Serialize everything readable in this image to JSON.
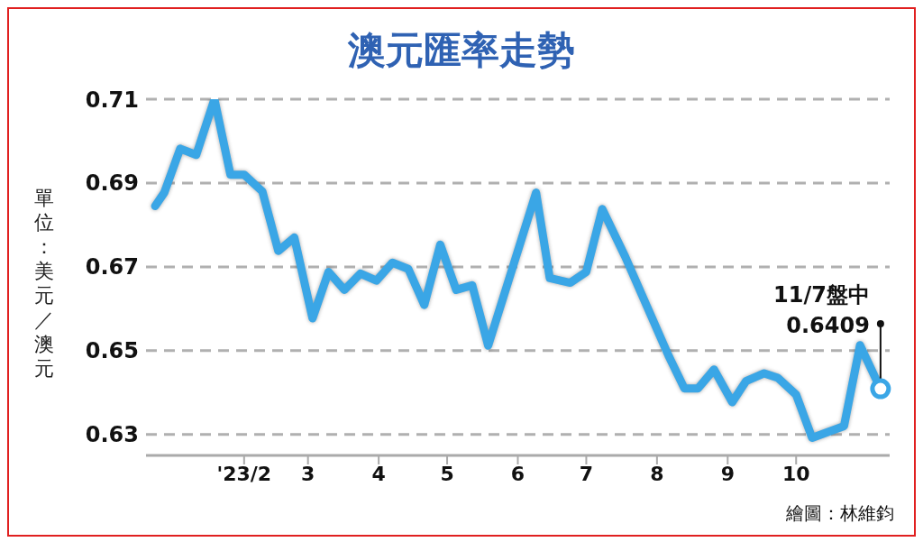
{
  "chart_data": {
    "type": "line",
    "title": "澳元匯率走勢",
    "ylabel": "單位：美元／澳元",
    "x": [
      "2022-12-24",
      "2022-12-28",
      "2023-01-04",
      "2023-01-11",
      "2023-01-19",
      "2023-01-26",
      "2023-02-01",
      "2023-02-09",
      "2023-02-16",
      "2023-02-23",
      "2023-03-03",
      "2023-03-10",
      "2023-03-17",
      "2023-03-24",
      "2023-03-31",
      "2023-04-07",
      "2023-04-14",
      "2023-04-21",
      "2023-04-28",
      "2023-05-05",
      "2023-05-12",
      "2023-05-19",
      "2023-06-09",
      "2023-06-15",
      "2023-06-24",
      "2023-07-01",
      "2023-07-08",
      "2023-07-18",
      "2023-08-06",
      "2023-08-13",
      "2023-08-19",
      "2023-08-26",
      "2023-09-03",
      "2023-09-09",
      "2023-09-17",
      "2023-09-23",
      "2023-10-01",
      "2023-10-08",
      "2023-10-22",
      "2023-10-29",
      "2023-11-07"
    ],
    "series": [
      {
        "color": "#3aa6e6",
        "values": [
          0.6845,
          0.6877,
          0.6982,
          0.6967,
          0.71,
          0.692,
          0.692,
          0.688,
          0.6738,
          0.677,
          0.6577,
          0.6688,
          0.6645,
          0.6684,
          0.6667,
          0.671,
          0.6695,
          0.6609,
          0.6753,
          0.6645,
          0.6656,
          0.6512,
          0.6877,
          0.6673,
          0.6662,
          0.6688,
          0.6838,
          0.6725,
          0.6489,
          0.641,
          0.641,
          0.6455,
          0.6377,
          0.6427,
          0.6446,
          0.6435,
          0.6395,
          0.6292,
          0.632,
          0.6513,
          0.6409
        ]
      }
    ],
    "xlim": [
      "2022-12-20",
      "2023-11-11"
    ],
    "xticks": [
      {
        "value": "2023-02-01",
        "label": "'23/2"
      },
      {
        "value": "2023-03-01",
        "label": "3"
      },
      {
        "value": "2023-04-01",
        "label": "4"
      },
      {
        "value": "2023-05-01",
        "label": "5"
      },
      {
        "value": "2023-06-01",
        "label": "6"
      },
      {
        "value": "2023-07-01",
        "label": "7"
      },
      {
        "value": "2023-08-01",
        "label": "8"
      },
      {
        "value": "2023-09-01",
        "label": "9"
      },
      {
        "value": "2023-10-01",
        "label": "10"
      }
    ],
    "ylim": [
      0.625,
      0.71
    ],
    "yticks": [
      0.63,
      0.65,
      0.67,
      0.69,
      0.71
    ],
    "grid": "y",
    "marker": "none",
    "line_style": "solid",
    "annotations": [
      {
        "text": "11/7盤中\n0.6409",
        "x": "2023-11-07",
        "y": 0.6409
      },
      "繪圖：林維鈞"
    ]
  }
}
